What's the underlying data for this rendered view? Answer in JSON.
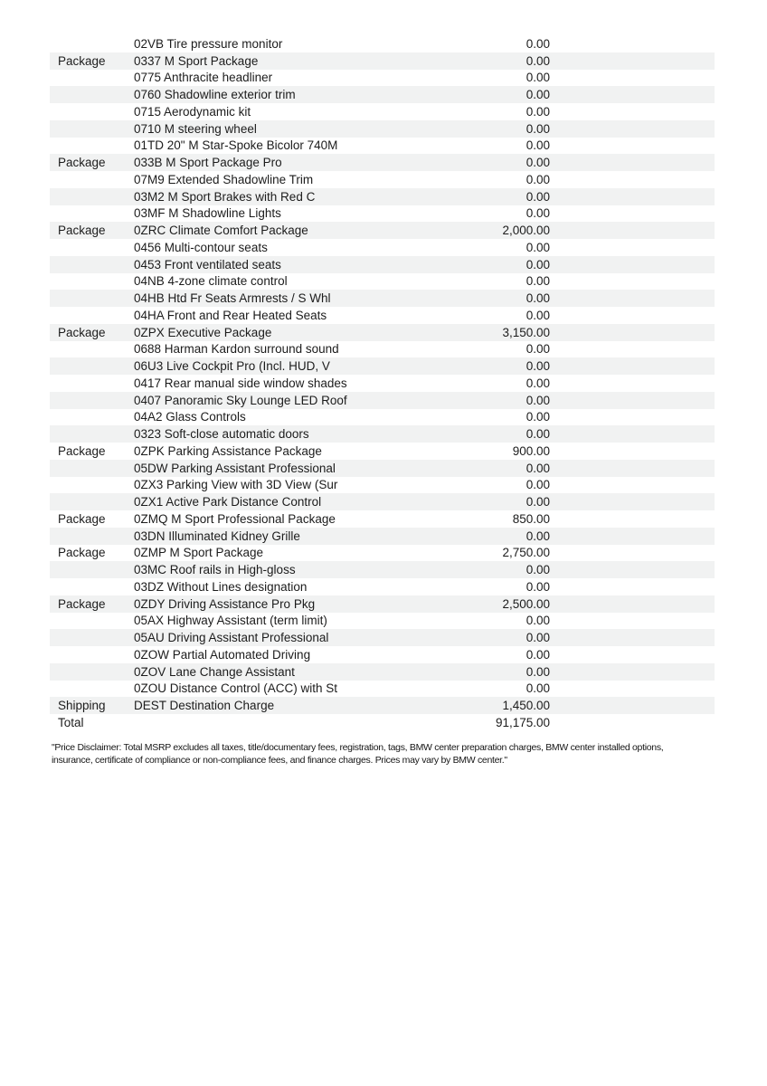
{
  "table": {
    "stripe_color": "#f1f2f2",
    "text_color": "#1c1c1c",
    "columns": [
      "category",
      "item",
      "price"
    ],
    "rows": [
      {
        "category": "",
        "item": "02VB Tire pressure monitor",
        "price": "0.00"
      },
      {
        "category": "Package",
        "item": "0337 M Sport Package",
        "price": "0.00"
      },
      {
        "category": "",
        "item": "0775 Anthracite headliner",
        "price": "0.00"
      },
      {
        "category": "",
        "item": "0760 Shadowline exterior trim",
        "price": "0.00"
      },
      {
        "category": "",
        "item": "0715 Aerodynamic kit",
        "price": "0.00"
      },
      {
        "category": "",
        "item": "0710 M steering wheel",
        "price": "0.00"
      },
      {
        "category": "",
        "item": "01TD 20\" M Star-Spoke Bicolor 740M",
        "price": "0.00"
      },
      {
        "category": "Package",
        "item": "033B M Sport Package Pro",
        "price": "0.00"
      },
      {
        "category": "",
        "item": "07M9 Extended Shadowline Trim",
        "price": "0.00"
      },
      {
        "category": "",
        "item": "03M2 M Sport Brakes with Red C",
        "price": "0.00"
      },
      {
        "category": "",
        "item": "03MF M Shadowline Lights",
        "price": "0.00"
      },
      {
        "category": "Package",
        "item": "0ZRC Climate Comfort Package",
        "price": "2,000.00"
      },
      {
        "category": "",
        "item": "0456 Multi-contour seats",
        "price": "0.00"
      },
      {
        "category": "",
        "item": "0453 Front ventilated seats",
        "price": "0.00"
      },
      {
        "category": "",
        "item": "04NB 4-zone climate control",
        "price": "0.00"
      },
      {
        "category": "",
        "item": "04HB Htd Fr Seats Armrests / S Whl",
        "price": "0.00"
      },
      {
        "category": "",
        "item": "04HA Front and Rear Heated Seats",
        "price": "0.00"
      },
      {
        "category": "Package",
        "item": "0ZPX Executive Package",
        "price": "3,150.00"
      },
      {
        "category": "",
        "item": "0688 Harman Kardon surround sound",
        "price": "0.00"
      },
      {
        "category": "",
        "item": "06U3 Live Cockpit Pro (Incl. HUD, V",
        "price": "0.00"
      },
      {
        "category": "",
        "item": "0417 Rear manual side window shades",
        "price": "0.00"
      },
      {
        "category": "",
        "item": "0407 Panoramic Sky Lounge LED Roof",
        "price": "0.00"
      },
      {
        "category": "",
        "item": "04A2 Glass Controls",
        "price": "0.00"
      },
      {
        "category": "",
        "item": "0323 Soft-close automatic doors",
        "price": "0.00"
      },
      {
        "category": "Package",
        "item": "0ZPK Parking Assistance Package",
        "price": "900.00"
      },
      {
        "category": "",
        "item": "05DW Parking Assistant Professional",
        "price": "0.00"
      },
      {
        "category": "",
        "item": "0ZX3 Parking View with 3D View (Sur",
        "price": "0.00"
      },
      {
        "category": "",
        "item": "0ZX1 Active Park Distance Control",
        "price": "0.00"
      },
      {
        "category": "Package",
        "item": "0ZMQ M Sport Professional Package",
        "price": "850.00"
      },
      {
        "category": "",
        "item": "03DN Illuminated Kidney Grille",
        "price": "0.00"
      },
      {
        "category": "Package",
        "item": "0ZMP M Sport Package",
        "price": "2,750.00"
      },
      {
        "category": "",
        "item": "03MC Roof rails in High-gloss",
        "price": "0.00"
      },
      {
        "category": "",
        "item": "03DZ Without Lines designation",
        "price": "0.00"
      },
      {
        "category": "Package",
        "item": "0ZDY Driving Assistance Pro Pkg",
        "price": "2,500.00"
      },
      {
        "category": "",
        "item": "05AX Highway Assistant (term limit)",
        "price": "0.00"
      },
      {
        "category": "",
        "item": "05AU Driving Assistant Professional",
        "price": "0.00"
      },
      {
        "category": "",
        "item": "0ZOW Partial Automated Driving",
        "price": "0.00"
      },
      {
        "category": "",
        "item": "0ZOV Lane Change Assistant",
        "price": "0.00"
      },
      {
        "category": "",
        "item": "0ZOU Distance Control (ACC) with St",
        "price": "0.00"
      },
      {
        "category": "Shipping",
        "item": "DEST Destination Charge",
        "price": "1,450.00"
      },
      {
        "category": "Total",
        "item": "",
        "price": "91,175.00"
      }
    ]
  },
  "footer": {
    "disclaimer": "\"Price Disclaimer: Total MSRP excludes all taxes, title/documentary fees, registration, tags, BMW center preparation charges, BMW center installed options, insurance, certificate of compliance or non-compliance fees, and finance charges. Prices may vary by BMW center.\""
  }
}
